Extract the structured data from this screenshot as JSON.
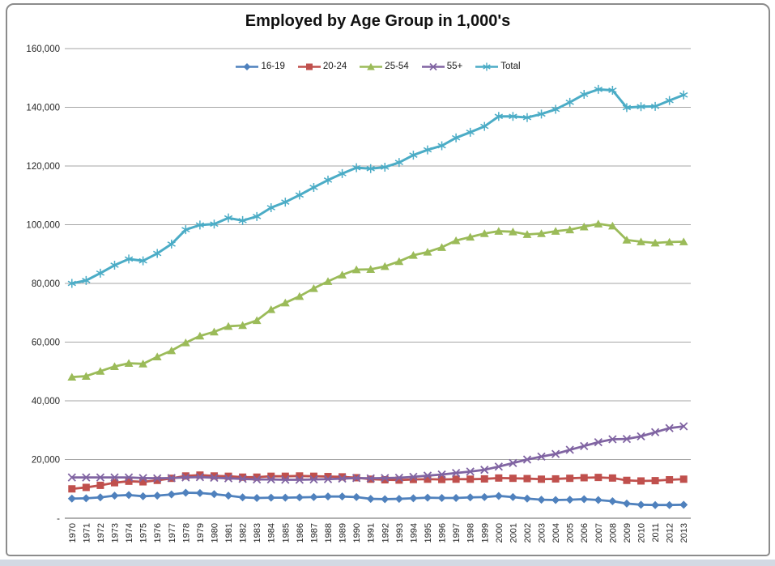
{
  "window": {
    "frame_border_color": "#8c8c8c",
    "background_color": "#ffffff",
    "footer_strip_color": "#d3d9e3"
  },
  "chart_data": {
    "type": "line",
    "title": "Employed by Age Group in 1,000's",
    "xlabel": "",
    "ylabel": "",
    "ylim": [
      0,
      160000
    ],
    "ytick_step": 20000,
    "ytick_labels": [
      "-",
      "20,000",
      "40,000",
      "60,000",
      "80,000",
      "100,000",
      "120,000",
      "140,000",
      "160,000"
    ],
    "grid": true,
    "legend_position": "top",
    "grid_color": "#a6a6a6",
    "axis_color": "#808080",
    "tick_label_color": "#262626",
    "x": [
      1970,
      1971,
      1972,
      1973,
      1974,
      1975,
      1976,
      1977,
      1978,
      1979,
      1980,
      1981,
      1982,
      1983,
      1984,
      1985,
      1986,
      1987,
      1988,
      1989,
      1990,
      1991,
      1992,
      1993,
      1994,
      1995,
      1996,
      1997,
      1998,
      1999,
      2000,
      2001,
      2002,
      2003,
      2004,
      2005,
      2006,
      2007,
      2008,
      2009,
      2010,
      2011,
      2012,
      2013
    ],
    "series": [
      {
        "name": "16-19",
        "color": "#4F81BD",
        "marker": "diamond",
        "values": [
          6700,
          6800,
          7100,
          7700,
          7900,
          7500,
          7700,
          8100,
          8700,
          8600,
          8200,
          7700,
          7100,
          6900,
          7000,
          7000,
          7100,
          7200,
          7400,
          7400,
          7200,
          6600,
          6500,
          6600,
          6800,
          7000,
          6900,
          6900,
          7100,
          7200,
          7600,
          7200,
          6700,
          6300,
          6200,
          6300,
          6500,
          6200,
          5800,
          5000,
          4600,
          4500,
          4500,
          4600
        ]
      },
      {
        "name": "20-24",
        "color": "#C0504D",
        "marker": "square",
        "values": [
          10000,
          10500,
          11200,
          12100,
          12600,
          12400,
          12900,
          13600,
          14400,
          14700,
          14400,
          14300,
          14000,
          14000,
          14300,
          14300,
          14400,
          14300,
          14200,
          14100,
          13800,
          13300,
          13100,
          13000,
          13200,
          13300,
          13200,
          13300,
          13300,
          13400,
          13700,
          13600,
          13500,
          13300,
          13400,
          13600,
          13800,
          13900,
          13700,
          12900,
          12700,
          12800,
          13100,
          13300
        ]
      },
      {
        "name": "25-54",
        "color": "#9BBB59",
        "marker": "triangle",
        "values": [
          48100,
          48400,
          50100,
          51700,
          52800,
          52600,
          55000,
          57100,
          59800,
          62100,
          63500,
          65400,
          65700,
          67400,
          71100,
          73400,
          75600,
          78300,
          80700,
          82900,
          84700,
          84800,
          85800,
          87500,
          89600,
          90700,
          92300,
          94600,
          95800,
          97000,
          97800,
          97600,
          96700,
          97000,
          97800,
          98300,
          99300,
          100300,
          99600,
          94800,
          94200,
          93800,
          94100,
          94200
        ]
      },
      {
        "name": "55+",
        "color": "#8064A2",
        "marker": "x",
        "values": [
          13900,
          13900,
          13900,
          13900,
          13900,
          13700,
          13600,
          13700,
          13900,
          14000,
          13800,
          13600,
          13400,
          13200,
          13200,
          13100,
          13100,
          13200,
          13300,
          13500,
          13700,
          13600,
          13700,
          13800,
          14100,
          14500,
          14900,
          15400,
          15900,
          16500,
          17600,
          18800,
          20000,
          21000,
          21900,
          23300,
          24600,
          25900,
          26900,
          27000,
          27900,
          29300,
          30700,
          31300
        ]
      },
      {
        "name": "Total",
        "color": "#4BACC6",
        "marker": "star",
        "values": [
          80000,
          81000,
          83500,
          86200,
          88300,
          87700,
          90200,
          93400,
          98300,
          99900,
          100200,
          102300,
          101400,
          102800,
          105800,
          107700,
          110100,
          112700,
          115200,
          117400,
          119400,
          119100,
          119600,
          121200,
          123700,
          125500,
          126900,
          129600,
          131500,
          133500,
          136900,
          136900,
          136500,
          137700,
          139300,
          141700,
          144400,
          146100,
          145800,
          139900,
          140200,
          140300,
          142300,
          144200
        ]
      }
    ]
  }
}
